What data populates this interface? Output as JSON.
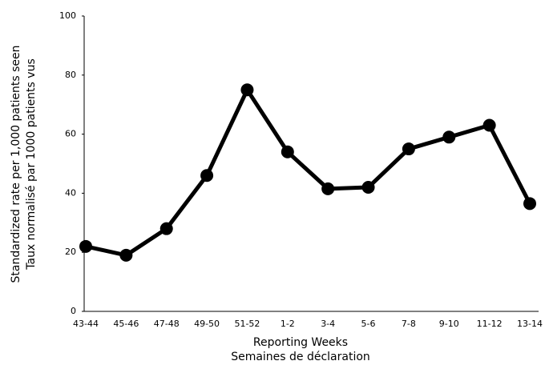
{
  "chart_data": {
    "type": "line",
    "y_label": [
      "Standardized rate per 1,000 patients seen",
      "Taux normalisé par 1000 patients vus"
    ],
    "x_label": [
      "Reporting Weeks",
      "Semaines de déclaration"
    ],
    "categories": [
      "43-44",
      "45-46",
      "47-48",
      "49-50",
      "51-52",
      "1-2",
      "3-4",
      "5-6",
      "7-8",
      "9-10",
      "11-12",
      "13-14"
    ],
    "values": [
      22,
      19,
      28,
      46,
      75,
      54,
      41.5,
      42,
      55,
      59,
      63,
      36.5
    ],
    "color": "#000000",
    "ylim": [
      0,
      100
    ],
    "yticks": [
      0,
      20,
      40,
      60,
      80,
      100
    ],
    "grid": false
  }
}
